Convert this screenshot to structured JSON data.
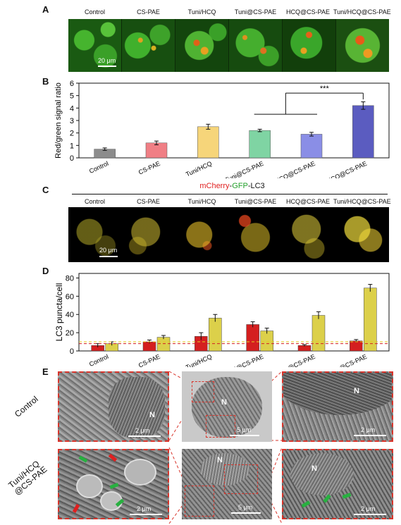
{
  "panelA": {
    "letter": "A",
    "headers": [
      "Control",
      "CS-PAE",
      "Tuni/HCQ",
      "Tuni@CS-PAE",
      "HCQ@CS-PAE",
      "Tuni/HCQ@CS-PAE"
    ],
    "scale": "20 μm"
  },
  "panelB": {
    "letter": "B",
    "chart_data": {
      "type": "bar",
      "categories": [
        "Control",
        "CS-PAE",
        "Tuni/HCQ",
        "Tuni@CS-PAE",
        "HCQ@CS-PAE",
        "Tuni/HCQ@CS-PAE"
      ],
      "values": [
        0.7,
        1.2,
        2.5,
        2.2,
        1.9,
        4.2
      ],
      "errors": [
        0.1,
        0.15,
        0.2,
        0.1,
        0.15,
        0.3
      ],
      "colors": [
        "#8c8c8c",
        "#f07f85",
        "#f6d57a",
        "#7fd4a3",
        "#8a8ee6",
        "#5b5cc0"
      ],
      "ylabel": "Red/green signal ratio",
      "ylim": [
        0,
        6
      ],
      "yticks": [
        0,
        1,
        2,
        3,
        4,
        5,
        6
      ],
      "significance": "***"
    }
  },
  "panelC": {
    "letter": "C",
    "title_parts": [
      "mCherry",
      "-",
      "GFP",
      "-LC3"
    ],
    "title_colors": [
      "#e02020",
      "#111111",
      "#22a02a",
      "#111111"
    ],
    "headers": [
      "Control",
      "CS-PAE",
      "Tuni/HCQ",
      "Tuni@CS-PAE",
      "HCQ@CS-PAE",
      "Tuni/HCQ@CS-PAE"
    ],
    "scale": "20 μm"
  },
  "panelD": {
    "letter": "D",
    "chart_data": {
      "type": "bar",
      "categories": [
        "Control",
        "CS-PAE",
        "Tuni/HCQ",
        "Tuni@CS-PAE",
        "HCQ@CS-PAE",
        "Tuni/HCQ@CS-PAE"
      ],
      "series": [
        {
          "values": [
            6,
            10,
            16,
            29,
            6,
            11
          ],
          "errors": [
            2,
            2,
            4,
            3,
            1,
            1.5
          ],
          "color": "#d41f1f"
        },
        {
          "values": [
            8,
            15,
            36,
            22,
            39,
            69
          ],
          "errors": [
            2,
            2,
            4,
            3,
            4,
            4
          ],
          "color": "#dcd04a"
        }
      ],
      "ylabel": "LC3 puncta/cell",
      "ylim": [
        0,
        85
      ],
      "yticks": [
        0,
        20,
        40,
        60,
        80
      ],
      "reference_lines": [
        8,
        10
      ]
    }
  },
  "panelE": {
    "letter": "E",
    "row_labels": [
      "Control",
      "Tuni/HCQ\n@CS-PAE"
    ],
    "nucleus_label": "N",
    "scales": [
      "2 μm",
      "5 μm",
      "2 μm",
      "2 μm",
      "5 μm",
      "2 μm"
    ]
  }
}
